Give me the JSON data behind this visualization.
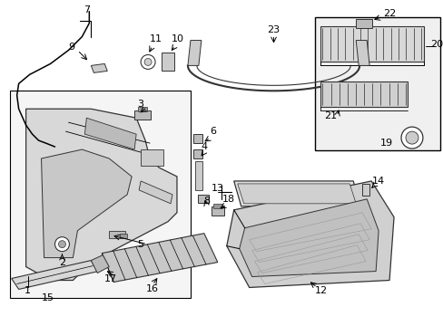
{
  "background_color": "#ffffff",
  "line_color": "#000000",
  "text_color": "#000000",
  "fig_width": 4.89,
  "fig_height": 3.6,
  "dpi": 100,
  "part_fill": "#e8e8e8",
  "part_edge": "#333333",
  "inset_fill": "#eeeeee"
}
